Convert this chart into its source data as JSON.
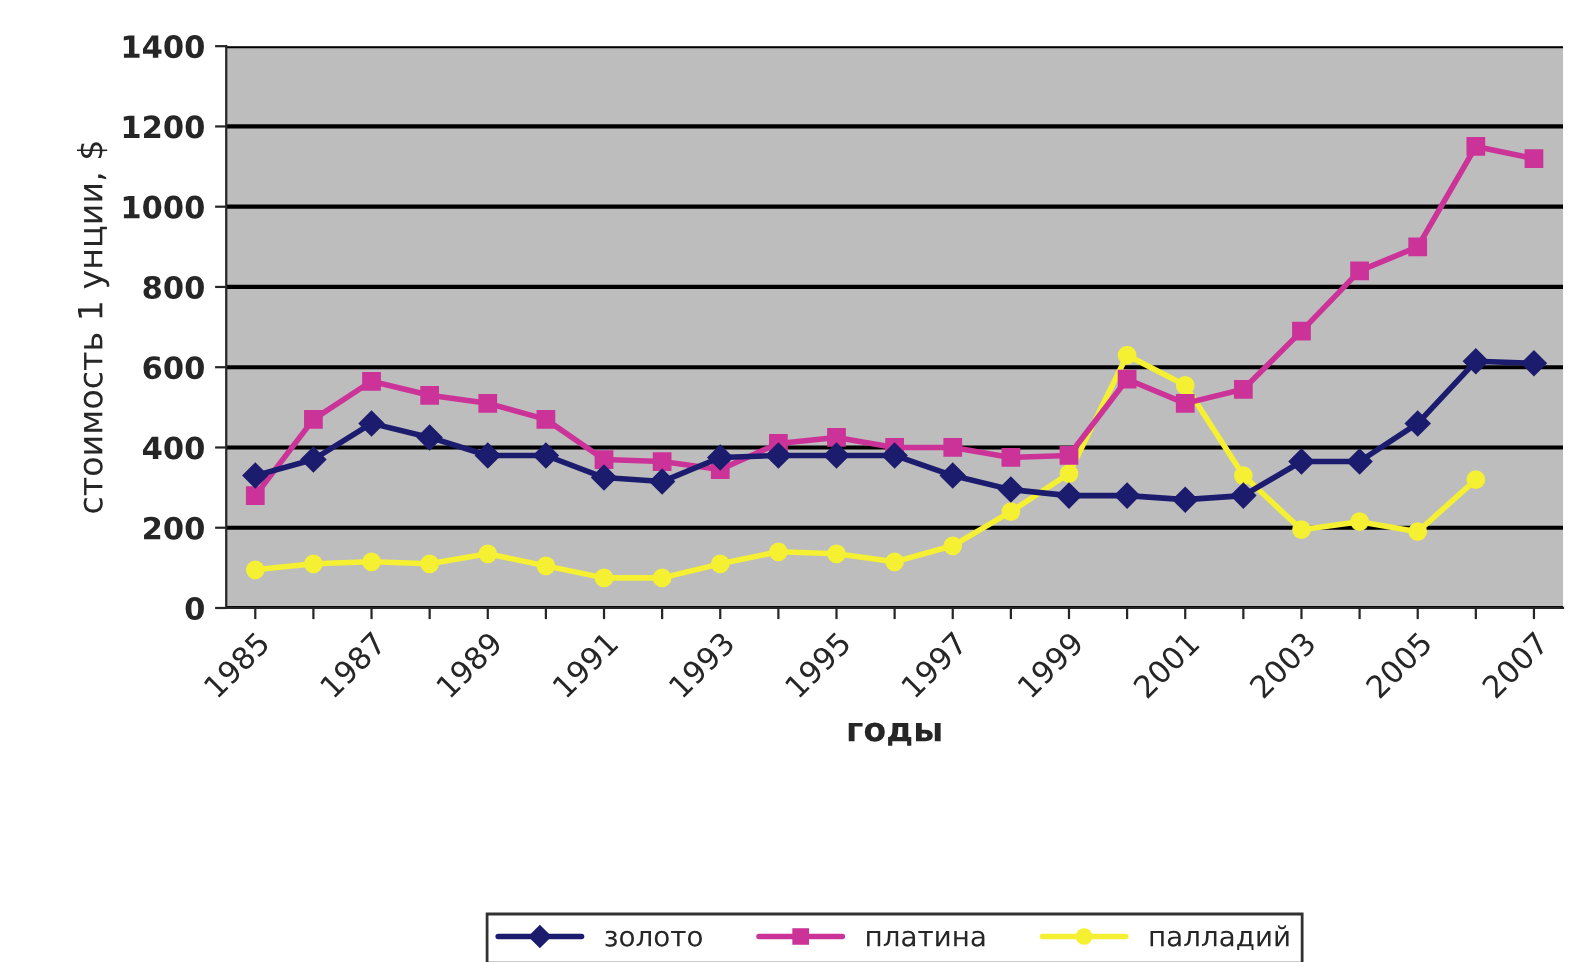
{
  "chart_data": {
    "type": "line",
    "xlabel": "годы",
    "ylabel": "стоимость 1 унции, $",
    "categories": [
      "1985",
      null,
      "1987",
      null,
      "1989",
      null,
      "1991",
      null,
      "1993",
      null,
      "1995",
      null,
      "1997",
      null,
      "1999",
      null,
      "2001",
      null,
      "2003",
      null,
      "2005",
      null,
      "2007"
    ],
    "series": [
      {
        "name": "золото",
        "color": "#1c1c6e",
        "marker": "diamond",
        "values": [
          330,
          370,
          460,
          425,
          380,
          380,
          325,
          315,
          375,
          380,
          380,
          380,
          330,
          295,
          280,
          280,
          270,
          280,
          365,
          365,
          460,
          615,
          610
        ]
      },
      {
        "name": "платина",
        "color": "#cc3399",
        "marker": "square",
        "values": [
          280,
          470,
          565,
          530,
          510,
          470,
          370,
          365,
          345,
          410,
          425,
          400,
          400,
          375,
          380,
          570,
          510,
          545,
          690,
          840,
          900,
          1150,
          1120
        ]
      },
      {
        "name": "палладий",
        "color": "#f5f032",
        "marker": "circle",
        "values": [
          95,
          110,
          115,
          110,
          135,
          105,
          75,
          75,
          110,
          140,
          135,
          115,
          155,
          240,
          335,
          630,
          555,
          330,
          195,
          215,
          190,
          320,
          null
        ]
      }
    ],
    "ylim": [
      0,
      1400
    ],
    "yticks": [
      0,
      200,
      400,
      600,
      800,
      1000,
      1200,
      1400
    ],
    "grid": "y",
    "legend": "bottom"
  }
}
